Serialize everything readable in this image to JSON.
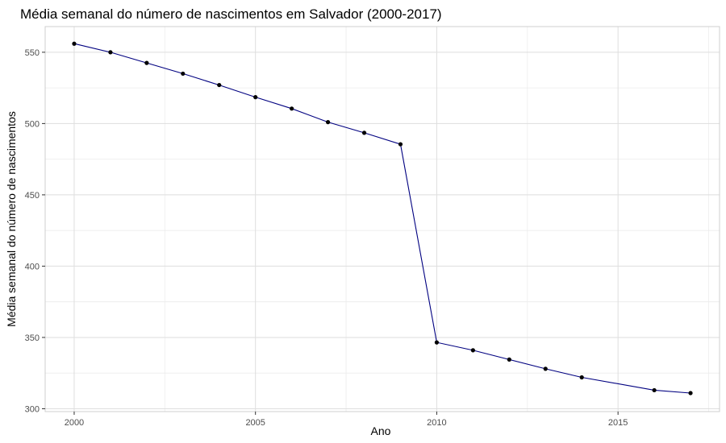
{
  "chart_data": {
    "type": "line",
    "title": "Média semanal do número de nascimentos em Salvador (2000-2017)",
    "xlabel": "Ano",
    "ylabel": "Média semanal do número de nascimentos",
    "xlim": [
      1999.2,
      2017.8
    ],
    "ylim": [
      298,
      568
    ],
    "x_ticks": [
      2000,
      2005,
      2010,
      2015
    ],
    "y_ticks": [
      300,
      350,
      400,
      450,
      500,
      550
    ],
    "grid": true,
    "line_color": "#000080",
    "point_color": "#000000",
    "series": [
      {
        "x": [
          2000,
          2001,
          2002,
          2003,
          2004,
          2005,
          2006,
          2007,
          2008,
          2009,
          2010,
          2011,
          2012,
          2013,
          2014,
          2016,
          2017
        ],
        "values": [
          556,
          550,
          542.5,
          535,
          527,
          518.5,
          510.5,
          501,
          493.5,
          485.5,
          346.5,
          341,
          334.5,
          328,
          322,
          313,
          311
        ]
      }
    ]
  }
}
